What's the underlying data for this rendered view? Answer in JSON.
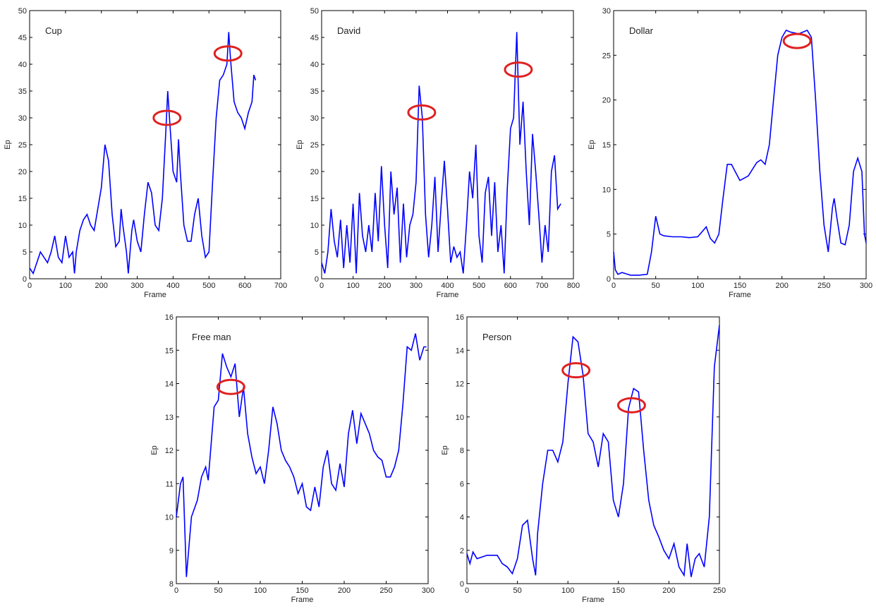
{
  "chart_data": [
    {
      "type": "line",
      "title": "Cup",
      "xlabel": "Frame",
      "ylabel": "Ep",
      "color": "#0000ff",
      "marker_color": "#e02020",
      "x": [
        0,
        10,
        20,
        30,
        40,
        50,
        60,
        70,
        80,
        90,
        100,
        110,
        120,
        125,
        130,
        140,
        150,
        160,
        170,
        180,
        190,
        200,
        210,
        220,
        230,
        240,
        250,
        255,
        260,
        270,
        275,
        285,
        290,
        300,
        310,
        320,
        330,
        340,
        350,
        360,
        370,
        380,
        385,
        390,
        400,
        410,
        415,
        420,
        430,
        440,
        450,
        460,
        470,
        480,
        490,
        500,
        510,
        520,
        530,
        540,
        550,
        555,
        560,
        570,
        580,
        590,
        600,
        610,
        620,
        625,
        630
      ],
      "values": [
        2,
        1,
        3,
        5,
        4,
        3,
        5,
        8,
        4,
        3,
        8,
        4,
        5,
        1,
        5,
        9,
        11,
        12,
        10,
        9,
        13,
        17,
        25,
        22,
        12,
        6,
        7,
        13,
        10,
        5,
        1,
        9,
        11,
        7,
        5,
        12,
        18,
        16,
        10,
        9,
        15,
        28,
        35,
        30,
        20,
        18,
        26,
        20,
        10,
        7,
        7,
        12,
        15,
        8,
        4,
        5,
        18,
        30,
        37,
        38,
        40,
        46,
        41,
        33,
        31,
        30,
        28,
        31,
        33,
        38,
        37
      ],
      "markers": [
        {
          "x": 383,
          "y": 30
        },
        {
          "x": 553,
          "y": 42
        }
      ],
      "xlim": [
        0,
        700
      ],
      "ylim": [
        0,
        50
      ],
      "xticks": [
        0,
        100,
        200,
        300,
        400,
        500,
        600,
        700
      ],
      "yticks": [
        0,
        5,
        10,
        15,
        20,
        25,
        30,
        35,
        40,
        45,
        50
      ]
    },
    {
      "type": "line",
      "title": "David",
      "xlabel": "Frame",
      "ylabel": "Ep",
      "color": "#0000ff",
      "marker_color": "#e02020",
      "x": [
        0,
        10,
        20,
        30,
        40,
        50,
        60,
        70,
        80,
        90,
        100,
        110,
        120,
        130,
        140,
        150,
        160,
        170,
        180,
        190,
        200,
        210,
        220,
        230,
        240,
        250,
        260,
        270,
        280,
        290,
        300,
        310,
        320,
        330,
        340,
        350,
        360,
        370,
        380,
        390,
        400,
        410,
        420,
        430,
        440,
        450,
        460,
        470,
        480,
        490,
        500,
        510,
        520,
        530,
        540,
        550,
        560,
        570,
        580,
        590,
        600,
        610,
        620,
        630,
        640,
        650,
        660,
        670,
        680,
        690,
        700,
        710,
        720,
        730,
        740,
        750,
        760
      ],
      "values": [
        3,
        1,
        5,
        13,
        7,
        4,
        11,
        2,
        10,
        3,
        14,
        1,
        16,
        8,
        5,
        10,
        5,
        16,
        7,
        21,
        10,
        2,
        20,
        12,
        17,
        3,
        14,
        4,
        10,
        12,
        18,
        36,
        30,
        12,
        4,
        10,
        19,
        5,
        14,
        22,
        13,
        3,
        6,
        4,
        5,
        1,
        10,
        20,
        15,
        25,
        8,
        3,
        16,
        19,
        8,
        18,
        5,
        10,
        1,
        17,
        28,
        30,
        46,
        25,
        33,
        20,
        10,
        27,
        20,
        12,
        3,
        10,
        5,
        20,
        23,
        13,
        14
      ],
      "markers": [
        {
          "x": 318,
          "y": 31
        },
        {
          "x": 625,
          "y": 39
        }
      ],
      "xlim": [
        0,
        800
      ],
      "ylim": [
        0,
        50
      ],
      "xticks": [
        0,
        100,
        200,
        300,
        400,
        500,
        600,
        700,
        800
      ],
      "yticks": [
        0,
        5,
        10,
        15,
        20,
        25,
        30,
        35,
        40,
        45,
        50
      ]
    },
    {
      "type": "line",
      "title": "Dollar",
      "xlabel": "Frame",
      "ylabel": "Ep",
      "color": "#0000ff",
      "marker_color": "#e02020",
      "x": [
        0,
        2,
        5,
        10,
        20,
        30,
        40,
        45,
        50,
        55,
        60,
        70,
        80,
        90,
        100,
        110,
        115,
        120,
        125,
        130,
        135,
        140,
        150,
        160,
        170,
        175,
        180,
        185,
        190,
        195,
        200,
        205,
        210,
        220,
        230,
        235,
        240,
        245,
        250,
        255,
        260,
        262,
        265,
        270,
        275,
        280,
        285,
        290,
        295,
        298,
        300
      ],
      "values": [
        3,
        1,
        0.5,
        0.7,
        0.4,
        0.4,
        0.5,
        3,
        7,
        5,
        4.8,
        4.7,
        4.7,
        4.6,
        4.7,
        5.8,
        4.5,
        4,
        5,
        9,
        12.8,
        12.8,
        11,
        11.5,
        13,
        13.3,
        12.8,
        15,
        20,
        25,
        27,
        27.8,
        27.6,
        27.4,
        27.8,
        27,
        20,
        12,
        6,
        3,
        8,
        9,
        7,
        4,
        3.8,
        6,
        12,
        13.5,
        12,
        5,
        4
      ],
      "markers": [
        {
          "x": 218,
          "y": 26.6
        }
      ],
      "xlim": [
        0,
        300
      ],
      "ylim": [
        0,
        30
      ],
      "xticks": [
        0,
        50,
        100,
        150,
        200,
        250,
        300
      ],
      "yticks": [
        0,
        5,
        10,
        15,
        20,
        25,
        30
      ]
    },
    {
      "type": "line",
      "title": "Free man",
      "xlabel": "Frame",
      "ylabel": "Ep",
      "color": "#0000ff",
      "marker_color": "#e02020",
      "x": [
        0,
        5,
        8,
        12,
        18,
        25,
        30,
        35,
        38,
        45,
        50,
        55,
        60,
        65,
        70,
        75,
        80,
        85,
        90,
        95,
        100,
        105,
        110,
        115,
        120,
        125,
        130,
        135,
        140,
        145,
        150,
        155,
        160,
        165,
        170,
        175,
        180,
        185,
        190,
        195,
        200,
        205,
        210,
        215,
        220,
        225,
        230,
        235,
        240,
        245,
        250,
        255,
        260,
        265,
        270,
        275,
        280,
        285,
        290,
        295,
        298
      ],
      "values": [
        10,
        11,
        11.2,
        8.2,
        10,
        10.5,
        11.2,
        11.5,
        11.1,
        13.3,
        13.5,
        14.9,
        14.5,
        14.2,
        14.6,
        13,
        13.9,
        12.5,
        11.8,
        11.3,
        11.5,
        11,
        12,
        13.3,
        12.8,
        12,
        11.7,
        11.5,
        11.2,
        10.7,
        11,
        10.3,
        10.2,
        10.9,
        10.3,
        11.5,
        12,
        11,
        10.8,
        11.6,
        10.9,
        12.5,
        13.2,
        12.2,
        13.1,
        12.8,
        12.5,
        12,
        11.8,
        11.7,
        11.2,
        11.2,
        11.5,
        12,
        13.4,
        15.1,
        15,
        15.5,
        14.7,
        15.1,
        15.1
      ],
      "markers": [
        {
          "x": 65,
          "y": 13.9
        }
      ],
      "xlim": [
        0,
        300
      ],
      "ylim": [
        8,
        16
      ],
      "xticks": [
        0,
        50,
        100,
        150,
        200,
        250,
        300
      ],
      "yticks": [
        8,
        9,
        10,
        11,
        12,
        13,
        14,
        15,
        16
      ]
    },
    {
      "type": "line",
      "title": "Person",
      "xlabel": "Frame",
      "ylabel": "Ep",
      "color": "#0000ff",
      "marker_color": "#e02020",
      "x": [
        0,
        3,
        6,
        10,
        20,
        30,
        35,
        40,
        45,
        50,
        55,
        60,
        65,
        68,
        70,
        75,
        80,
        85,
        90,
        95,
        100,
        105,
        110,
        115,
        120,
        125,
        130,
        135,
        140,
        145,
        150,
        155,
        160,
        165,
        170,
        175,
        180,
        185,
        190,
        195,
        200,
        205,
        210,
        215,
        218,
        222,
        226,
        230,
        235,
        240,
        245,
        250
      ],
      "values": [
        1.8,
        1.2,
        1.9,
        1.5,
        1.7,
        1.7,
        1.2,
        1,
        0.6,
        1.5,
        3.5,
        3.8,
        1.5,
        0.5,
        3,
        6,
        8,
        8,
        7.3,
        8.5,
        12,
        14.8,
        14.5,
        12.5,
        9,
        8.5,
        7,
        9,
        8.5,
        5,
        4,
        6,
        10.5,
        11.7,
        11.5,
        8,
        5,
        3.5,
        2.8,
        2,
        1.5,
        2.4,
        1,
        0.5,
        2.4,
        0.4,
        1.5,
        1.8,
        1,
        4,
        13,
        15.5
      ],
      "markers": [
        {
          "x": 108,
          "y": 12.8
        },
        {
          "x": 163,
          "y": 10.7
        }
      ],
      "xlim": [
        0,
        250
      ],
      "ylim": [
        0,
        16
      ],
      "xticks": [
        0,
        50,
        100,
        150,
        200,
        250
      ],
      "yticks": [
        0,
        2,
        4,
        6,
        8,
        10,
        12,
        14,
        16
      ]
    }
  ]
}
